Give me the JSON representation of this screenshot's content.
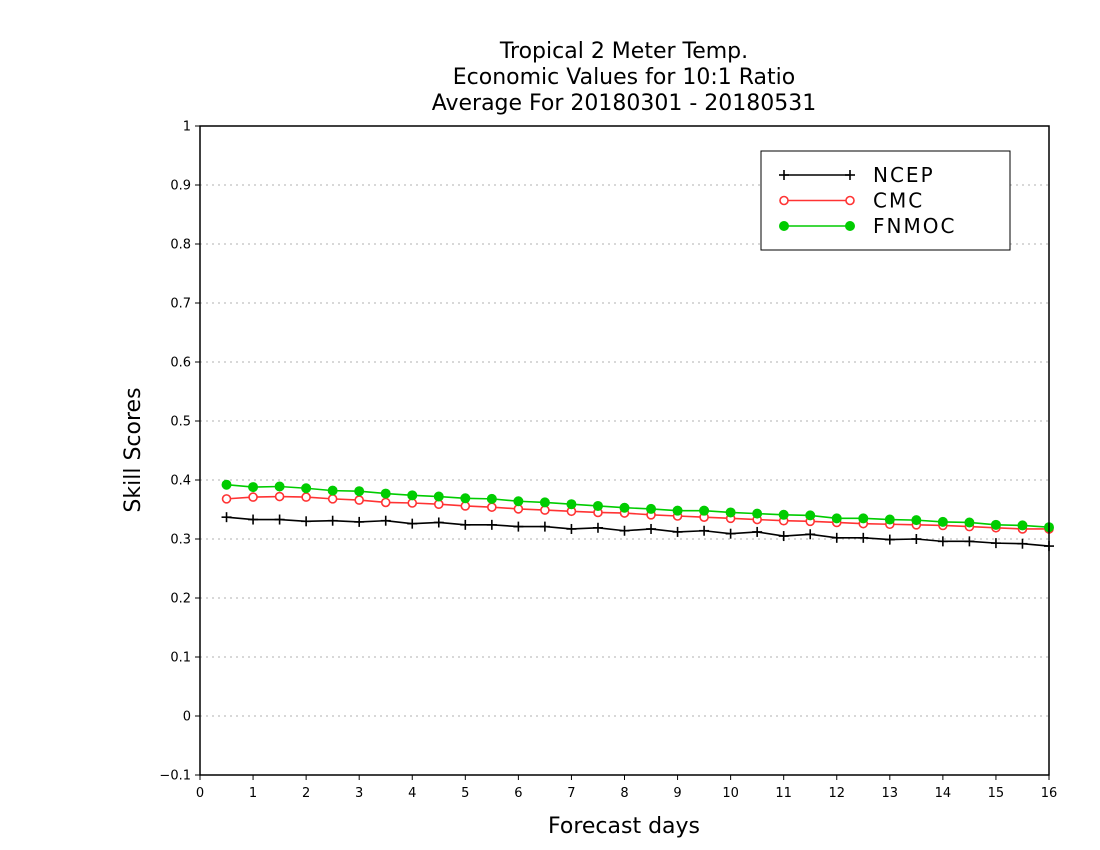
{
  "chart_data": {
    "type": "line",
    "title": [
      "Tropical 2 Meter Temp.",
      "Economic Values for 10:1 Ratio",
      "Average For 20180301 - 20180531"
    ],
    "xlabel": "Forecast days",
    "ylabel": "Skill Scores",
    "xlim": [
      0,
      16
    ],
    "ylim": [
      -0.1,
      1
    ],
    "x_ticks": [
      "0",
      "1",
      "2",
      "3",
      "4",
      "5",
      "6",
      "7",
      "8",
      "9",
      "10",
      "11",
      "12",
      "13",
      "14",
      "15",
      "16"
    ],
    "y_ticks": [
      "−0.1",
      "0",
      "0.1",
      "0.2",
      "0.3",
      "0.4",
      "0.5",
      "0.6",
      "0.7",
      "0.8",
      "0.9",
      "1"
    ],
    "grid": "horizontal dotted",
    "legend_position": "top-right",
    "x": [
      0.5,
      1,
      1.5,
      2,
      2.5,
      3,
      3.5,
      4,
      4.5,
      5,
      5.5,
      6,
      6.5,
      7,
      7.5,
      8,
      8.5,
      9,
      9.5,
      10,
      10.5,
      11,
      11.5,
      12,
      12.5,
      13,
      13.5,
      14,
      14.5,
      15,
      15.5,
      16
    ],
    "series": [
      {
        "name": "NCEP",
        "color": "#000000",
        "marker": "plus",
        "values": [
          0.337,
          0.333,
          0.333,
          0.33,
          0.331,
          0.329,
          0.331,
          0.326,
          0.328,
          0.324,
          0.324,
          0.321,
          0.321,
          0.317,
          0.319,
          0.314,
          0.317,
          0.312,
          0.314,
          0.309,
          0.312,
          0.305,
          0.308,
          0.302,
          0.302,
          0.299,
          0.3,
          0.296,
          0.296,
          0.293,
          0.292,
          0.288
        ]
      },
      {
        "name": "CMC",
        "color": "#ff3333",
        "marker": "open-circle",
        "values": [
          0.368,
          0.371,
          0.372,
          0.371,
          0.368,
          0.366,
          0.362,
          0.361,
          0.359,
          0.356,
          0.354,
          0.351,
          0.349,
          0.347,
          0.345,
          0.344,
          0.341,
          0.339,
          0.337,
          0.335,
          0.333,
          0.331,
          0.33,
          0.328,
          0.326,
          0.325,
          0.324,
          0.323,
          0.321,
          0.319,
          0.317,
          0.317
        ]
      },
      {
        "name": "FNMOC",
        "color": "#00cc00",
        "marker": "filled-circle",
        "values": [
          0.392,
          0.388,
          0.389,
          0.386,
          0.382,
          0.381,
          0.377,
          0.374,
          0.372,
          0.369,
          0.368,
          0.364,
          0.362,
          0.359,
          0.356,
          0.353,
          0.351,
          0.348,
          0.348,
          0.345,
          0.343,
          0.341,
          0.34,
          0.335,
          0.335,
          0.333,
          0.332,
          0.329,
          0.328,
          0.324,
          0.323,
          0.32
        ]
      }
    ]
  }
}
